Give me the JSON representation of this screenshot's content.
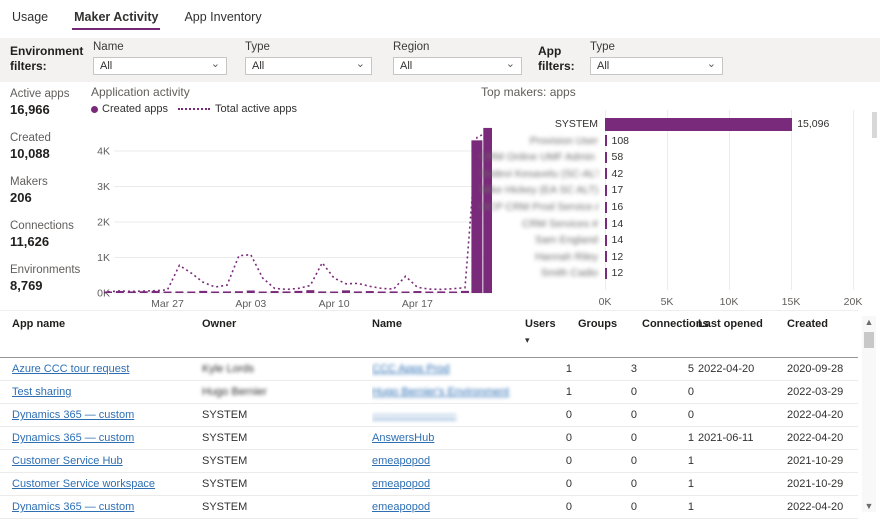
{
  "colors": {
    "accent": "#7a2a7a",
    "tab_underline": "#742774",
    "link": "#2e6fb4",
    "muted_text": "#605e5c",
    "filter_bar_bg": "#f3f2f1"
  },
  "icons": {
    "dropdown_chevron": "⌄",
    "sort_desc": "▾",
    "scroll_up": "▲",
    "scroll_down": "▼"
  },
  "tabs": [
    {
      "label": "Usage",
      "active": false
    },
    {
      "label": "Maker Activity",
      "active": true
    },
    {
      "label": "App Inventory",
      "active": false
    }
  ],
  "filters": {
    "environment_label": "Environment filters:",
    "app_label": "App filters:",
    "environment_dropdowns": [
      {
        "label": "Name",
        "value": "All"
      },
      {
        "label": "Type",
        "value": "All"
      },
      {
        "label": "Region",
        "value": "All"
      }
    ],
    "app_dropdowns": [
      {
        "label": "Type",
        "value": "All"
      }
    ]
  },
  "kpis": [
    {
      "label": "Active apps",
      "value": "16,966"
    },
    {
      "label": "Created",
      "value": "10,088"
    },
    {
      "label": "Makers",
      "value": "206"
    },
    {
      "label": "Connections",
      "value": "11,626"
    },
    {
      "label": "Environments",
      "value": "8,769"
    }
  ],
  "chart_data": [
    {
      "type": "bar+line",
      "title": "Application activity",
      "legend": [
        {
          "name": "Created apps",
          "style": "bar"
        },
        {
          "name": "Total active apps",
          "style": "dotted-line"
        }
      ],
      "x_start_date": "Mar 22",
      "x_end_date": "Apr 23",
      "x_tick_labels": [
        "Mar 27",
        "Apr 03",
        "Apr 10",
        "Apr 17"
      ],
      "x_tick_indices": [
        5,
        12,
        19,
        26
      ],
      "y_ticks": [
        {
          "value": 0,
          "label": "0K"
        },
        {
          "value": 1000,
          "label": "1K"
        },
        {
          "value": 2000,
          "label": "2K"
        },
        {
          "value": 3000,
          "label": "3K"
        },
        {
          "value": 4000,
          "label": "4K"
        }
      ],
      "ylim": [
        0,
        4700
      ],
      "series": [
        {
          "name": "Created apps",
          "type": "bar",
          "values": [
            40,
            55,
            45,
            50,
            60,
            35,
            45,
            40,
            60,
            30,
            45,
            50,
            70,
            40,
            55,
            45,
            60,
            80,
            45,
            35,
            75,
            45,
            55,
            35,
            45,
            30,
            55,
            40,
            45,
            35,
            60,
            4300,
            4650
          ]
        },
        {
          "name": "Total active apps",
          "type": "line",
          "values": [
            35,
            60,
            45,
            55,
            65,
            90,
            780,
            560,
            300,
            170,
            220,
            1050,
            1080,
            420,
            130,
            100,
            130,
            210,
            850,
            420,
            260,
            270,
            190,
            130,
            110,
            470,
            160,
            110,
            100,
            120,
            150,
            4380,
            4550
          ]
        }
      ]
    },
    {
      "type": "bar",
      "orientation": "horizontal",
      "title": "Top makers: apps",
      "categories": [
        "SYSTEM",
        "Provision User",
        "CRM Online UMF Admin #",
        "Sridevi Kesavelu (SC-ALT)",
        "Mike Hickey (EA SC ALT)",
        "OCP CRM Prod Service A...",
        "CRM Services #",
        "Sam England",
        "Hannah Riley",
        "Smith Cadio"
      ],
      "values": [
        15096,
        108,
        58,
        42,
        17,
        16,
        14,
        14,
        12,
        12
      ],
      "value_labels": [
        "15,096",
        "108",
        "58",
        "42",
        "17",
        "16",
        "14",
        "14",
        "12",
        "12"
      ],
      "blurred": [
        false,
        true,
        true,
        true,
        true,
        true,
        true,
        true,
        true,
        true
      ],
      "x_ticks": [
        "0K",
        "5K",
        "10K",
        "15K",
        "20K"
      ],
      "xlim": [
        0,
        20000
      ]
    }
  ],
  "table": {
    "columns": [
      "App name",
      "Owner",
      "Name",
      "Users",
      "Groups",
      "Connections",
      "Last opened",
      "Created"
    ],
    "sort_column": "Users",
    "rows": [
      {
        "app": "Azure CCC tour request",
        "owner": "Kyle Lords",
        "owner_blur": true,
        "name": "CCC Apps Prod",
        "name_blur": true,
        "users": "1",
        "groups": "3",
        "connections": "5",
        "last_opened": "2022-04-20",
        "created": "2020-09-28"
      },
      {
        "app": "Test sharing",
        "owner": "Hugo Bernier",
        "owner_blur": true,
        "name": "Hugo Bernier's Environment",
        "name_blur": true,
        "users": "1",
        "groups": "0",
        "connections": "0",
        "last_opened": "",
        "created": "2022-03-29"
      },
      {
        "app": "Dynamics 365 — custom",
        "owner": "SYSTEM",
        "owner_blur": false,
        "name": "-----------------------",
        "name_blur": true,
        "users": "0",
        "groups": "0",
        "connections": "0",
        "last_opened": "",
        "created": "2022-04-20"
      },
      {
        "app": "Dynamics 365 — custom",
        "owner": "SYSTEM",
        "owner_blur": false,
        "name": "AnswersHub",
        "name_blur": false,
        "users": "0",
        "groups": "0",
        "connections": "1",
        "last_opened": "2021-06-11",
        "created": "2022-04-20"
      },
      {
        "app": "Customer Service Hub",
        "owner": "SYSTEM",
        "owner_blur": false,
        "name": "emeapopod",
        "name_blur": false,
        "users": "0",
        "groups": "0",
        "connections": "1",
        "last_opened": "",
        "created": "2021-10-29"
      },
      {
        "app": "Customer Service workspace",
        "owner": "SYSTEM",
        "owner_blur": false,
        "name": "emeapopod",
        "name_blur": false,
        "users": "0",
        "groups": "0",
        "connections": "1",
        "last_opened": "",
        "created": "2021-10-29"
      },
      {
        "app": "Dynamics 365 — custom",
        "owner": "SYSTEM",
        "owner_blur": false,
        "name": "emeapopod",
        "name_blur": false,
        "users": "0",
        "groups": "0",
        "connections": "1",
        "last_opened": "",
        "created": "2022-04-20"
      }
    ]
  }
}
